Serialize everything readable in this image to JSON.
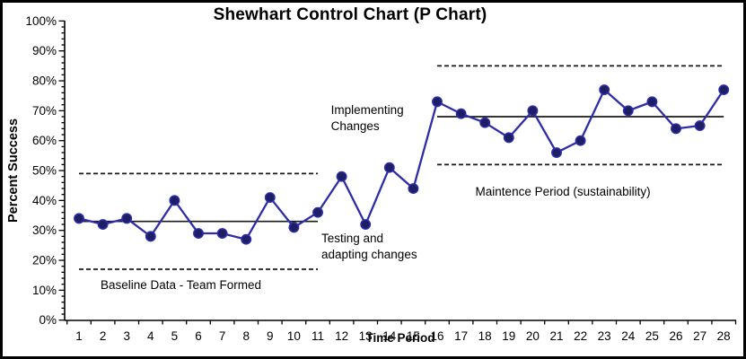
{
  "colors": {
    "series_line": "#2d2da8",
    "marker_fill": "#1e1e64",
    "marker_edge": "#2d2da8",
    "control_line": "#1a1a1a",
    "axis": "#000000",
    "text": "#000000",
    "background": "#ffffff",
    "border": "#000000"
  },
  "chart_data": {
    "type": "line",
    "title": "Shewhart Control Chart (P Chart)",
    "xlabel": "Time Period",
    "ylabel": "Percent Success",
    "x": [
      1,
      2,
      3,
      4,
      5,
      6,
      7,
      8,
      9,
      10,
      11,
      12,
      13,
      14,
      15,
      16,
      17,
      18,
      19,
      20,
      21,
      22,
      23,
      24,
      25,
      26,
      27,
      28
    ],
    "series": [
      {
        "name": "Percent Success",
        "values": [
          34,
          32,
          34,
          28,
          40,
          29,
          29,
          27,
          41,
          31,
          36,
          48,
          32,
          51,
          44,
          73,
          69,
          66,
          61,
          70,
          56,
          60,
          77,
          70,
          73,
          64,
          65,
          77
        ]
      }
    ],
    "ylim": [
      0,
      100
    ],
    "ytick_step": 10,
    "ytick_minor_step": 2,
    "ytick_labels": [
      "0%",
      "10%",
      "20%",
      "30%",
      "40%",
      "50%",
      "60%",
      "70%",
      "80%",
      "90%",
      "100%"
    ],
    "grid": false,
    "legend": "none",
    "control_limits": [
      {
        "phase": "baseline",
        "x_start": 1,
        "x_end": 11,
        "center": 33,
        "ucl": 49,
        "lcl": 17
      },
      {
        "phase": "maintenance",
        "x_start": 16,
        "x_end": 28,
        "center": 68,
        "ucl": 85,
        "lcl": 52
      }
    ],
    "annotations": [
      {
        "id": "baseline-label",
        "x": 1.9,
        "y": 10.4,
        "lines": [
          "Baseline Data - Team Formed"
        ]
      },
      {
        "id": "testing-label",
        "x": 11.15,
        "y": 26.0,
        "lines": [
          "Testing  and",
          "adapting changes"
        ]
      },
      {
        "id": "implementing-label",
        "x": 11.55,
        "y": 68.9,
        "lines": [
          "Implementing",
          "Changes"
        ]
      },
      {
        "id": "maintenance-label",
        "x": 17.6,
        "y": 41.6,
        "lines": [
          "Maintence Period (sustainability)"
        ]
      }
    ]
  }
}
